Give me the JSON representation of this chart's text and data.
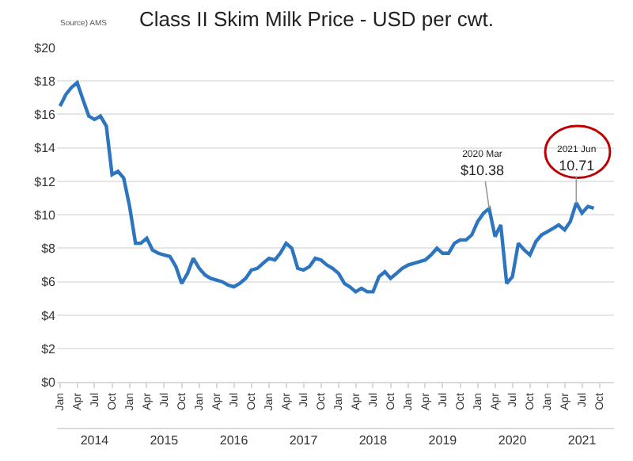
{
  "chart_data": {
    "type": "line",
    "title": "Class II Skim Milk Price - USD per cwt.",
    "x": [
      "2014-01",
      "2014-02",
      "2014-03",
      "2014-04",
      "2014-05",
      "2014-06",
      "2014-07",
      "2014-08",
      "2014-09",
      "2014-10",
      "2014-11",
      "2014-12",
      "2015-01",
      "2015-02",
      "2015-03",
      "2015-04",
      "2015-05",
      "2015-06",
      "2015-07",
      "2015-08",
      "2015-09",
      "2015-10",
      "2015-11",
      "2015-12",
      "2016-01",
      "2016-02",
      "2016-03",
      "2016-04",
      "2016-05",
      "2016-06",
      "2016-07",
      "2016-08",
      "2016-09",
      "2016-10",
      "2016-11",
      "2016-12",
      "2017-01",
      "2017-02",
      "2017-03",
      "2017-04",
      "2017-05",
      "2017-06",
      "2017-07",
      "2017-08",
      "2017-09",
      "2017-10",
      "2017-11",
      "2017-12",
      "2018-01",
      "2018-02",
      "2018-03",
      "2018-04",
      "2018-05",
      "2018-06",
      "2018-07",
      "2018-08",
      "2018-09",
      "2018-10",
      "2018-11",
      "2018-12",
      "2019-01",
      "2019-02",
      "2019-03",
      "2019-04",
      "2019-05",
      "2019-06",
      "2019-07",
      "2019-08",
      "2019-09",
      "2019-10",
      "2019-11",
      "2019-12",
      "2020-01",
      "2020-02",
      "2020-03",
      "2020-04",
      "2020-05",
      "2020-06",
      "2020-07",
      "2020-08",
      "2020-09",
      "2020-10",
      "2020-11",
      "2020-12",
      "2021-01",
      "2021-02",
      "2021-03",
      "2021-04",
      "2021-05",
      "2021-06",
      "2021-07",
      "2021-08",
      "2021-09"
    ],
    "series": [
      {
        "color": "#2e75c0",
        "values": [
          16.5,
          17.2,
          17.6,
          17.9,
          16.9,
          15.9,
          15.7,
          15.9,
          15.3,
          12.4,
          12.6,
          12.2,
          10.5,
          8.3,
          8.3,
          8.6,
          7.9,
          7.7,
          7.6,
          7.5,
          6.9,
          5.9,
          6.5,
          7.4,
          6.8,
          6.4,
          6.2,
          6.1,
          6.0,
          5.8,
          5.7,
          5.9,
          6.2,
          6.7,
          6.8,
          7.1,
          7.4,
          7.3,
          7.7,
          8.3,
          8.0,
          6.8,
          6.7,
          6.9,
          7.4,
          7.3,
          7.0,
          6.8,
          6.5,
          5.9,
          5.7,
          5.4,
          5.6,
          5.4,
          5.4,
          6.3,
          6.6,
          6.2,
          6.5,
          6.8,
          7.0,
          7.1,
          7.2,
          7.3,
          7.6,
          8.0,
          7.7,
          7.7,
          8.3,
          8.5,
          8.5,
          8.8,
          9.6,
          10.1,
          10.38,
          8.7,
          9.4,
          5.9,
          6.3,
          8.3,
          7.9,
          7.6,
          8.4,
          8.8,
          9.0,
          9.2,
          9.4,
          9.1,
          9.6,
          10.71,
          10.1,
          10.5,
          10.4
        ]
      }
    ],
    "xlim": [
      "2013-12-16",
      "2021-12-16"
    ],
    "xticks": [
      {
        "value": "2014-01",
        "label": "Jan"
      },
      {
        "value": "2014-04",
        "label": "Apr"
      },
      {
        "value": "2014-07",
        "label": "Jul"
      },
      {
        "value": "2014-10",
        "label": "Oct"
      },
      {
        "value": "2015-01",
        "label": "Jan"
      },
      {
        "value": "2015-04",
        "label": "Apr"
      },
      {
        "value": "2015-07",
        "label": "Jul"
      },
      {
        "value": "2015-10",
        "label": "Oct"
      },
      {
        "value": "2016-01",
        "label": "Jan"
      },
      {
        "value": "2016-04",
        "label": "Apr"
      },
      {
        "value": "2016-07",
        "label": "Jul"
      },
      {
        "value": "2016-10",
        "label": "Oct"
      },
      {
        "value": "2017-01",
        "label": "Jan"
      },
      {
        "value": "2017-04",
        "label": "Apr"
      },
      {
        "value": "2017-07",
        "label": "Jul"
      },
      {
        "value": "2017-10",
        "label": "Oct"
      },
      {
        "value": "2018-01",
        "label": "Jan"
      },
      {
        "value": "2018-04",
        "label": "Apr"
      },
      {
        "value": "2018-07",
        "label": "Jul"
      },
      {
        "value": "2018-10",
        "label": "Oct"
      },
      {
        "value": "2019-01",
        "label": "Jan"
      },
      {
        "value": "2019-04",
        "label": "Apr"
      },
      {
        "value": "2019-07",
        "label": "Jul"
      },
      {
        "value": "2019-10",
        "label": "Oct"
      },
      {
        "value": "2020-01",
        "label": "Jan"
      },
      {
        "value": "2020-04",
        "label": "Apr"
      },
      {
        "value": "2020-07",
        "label": "Jul"
      },
      {
        "value": "2020-10",
        "label": "Oct"
      },
      {
        "value": "2021-01",
        "label": "Jan"
      },
      {
        "value": "2021-04",
        "label": "Apr"
      },
      {
        "value": "2021-07",
        "label": "Jul"
      },
      {
        "value": "2021-10",
        "label": "Oct"
      }
    ],
    "x2lim": [
      "2013-12-16",
      "2021-12-16"
    ],
    "x2ticks": [
      {
        "value": "2014-07-01",
        "label": "2014"
      },
      {
        "value": "2015-07-01",
        "label": "2015"
      },
      {
        "value": "2016-07-01",
        "label": "2016"
      },
      {
        "value": "2017-07-01",
        "label": "2017"
      },
      {
        "value": "2018-07-01",
        "label": "2018"
      },
      {
        "value": "2019-07-01",
        "label": "2019"
      },
      {
        "value": "2020-07-01",
        "label": "2020"
      },
      {
        "value": "2021-07-01",
        "label": "2021"
      }
    ],
    "ylim": [
      0,
      20
    ],
    "yticks": [
      {
        "value": 0,
        "label": "$0"
      },
      {
        "value": 2,
        "label": "$2"
      },
      {
        "value": 4,
        "label": "$4"
      },
      {
        "value": 6,
        "label": "$6"
      },
      {
        "value": 8,
        "label": "$8"
      },
      {
        "value": 10,
        "label": "$10"
      },
      {
        "value": 12,
        "label": "$12"
      },
      {
        "value": 14,
        "label": "$14"
      },
      {
        "value": 16,
        "label": "$16"
      },
      {
        "value": 18,
        "label": "$18"
      },
      {
        "value": 20,
        "label": "$20"
      }
    ],
    "grid": "y",
    "annotations": [
      "Source) AMS",
      {
        "text": "2020 Mar\n$10.38",
        "x": "2020-03",
        "y": 10.38
      },
      {
        "text": "2021 Jun\n10.71",
        "x": "2021-06",
        "y": 10.71
      }
    ]
  }
}
